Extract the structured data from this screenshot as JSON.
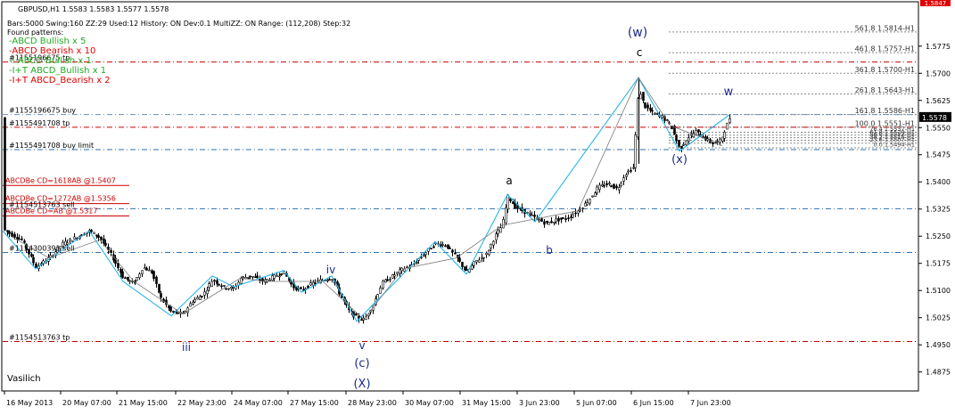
{
  "chart_data": {
    "type": "candlestick",
    "symbol_line": "GBPUSD,H1  1.5583 1.5583 1.5577 1.5578",
    "info_line": "Bars:5000  Swing:160  ZZ:29  Used:12  History: ON Dev:0.1  MultiZZ: ON  Range: (112,208)  Step:32",
    "found_patterns_label": "Found patterns:",
    "patterns": [
      {
        "text": "-ABCD Bullish x 5",
        "color": "#22aa22"
      },
      {
        "text": "-ABCD Bearish x 10",
        "color": "#dd0000"
      },
      {
        "text": "-I ABCD Bullish x 1",
        "color": "#22aa22"
      },
      {
        "text": "-I+T ABCD_Bullish x 1",
        "color": "#22aa22"
      },
      {
        "text": "-I+T ABCD_Bearish x 2",
        "color": "#dd0000"
      }
    ],
    "price_axis": {
      "min": 1.4825,
      "max": 1.5895,
      "ticks": [
        "1.5775",
        "1.5700",
        "1.5625",
        "1.5550",
        "1.5475",
        "1.5400",
        "1.5325",
        "1.5250",
        "1.5175",
        "1.5100",
        "1.5025",
        "1.4950",
        "1.4875"
      ],
      "current_price": "1.5578",
      "top_label": "1.5847"
    },
    "time_axis": {
      "ticks": [
        "16 May 2013",
        "20 May 07:00",
        "21 May 15:00",
        "22 May 23:00",
        "24 May 07:00",
        "27 May 15:00",
        "28 May 23:00",
        "30 May 07:00",
        "31 May 15:00",
        "3 Jun 23:00",
        "5 Jun 07:00",
        "6 Jun 15:00",
        "7 Jun 23:00"
      ]
    },
    "fibo_levels": [
      {
        "label": "561.8 1.5814-H1",
        "price": 1.5814
      },
      {
        "label": "461.8 1.5757-H1",
        "price": 1.5757
      },
      {
        "label": "361.8 1.5700-H1",
        "price": 1.57
      },
      {
        "label": "261.8 1.5643-H1",
        "price": 1.5643
      },
      {
        "label": "161.8 1.5586-H1",
        "price": 1.5586
      },
      {
        "label": "100.0 1.5551-H1",
        "price": 1.5551
      },
      {
        "label": "76.4 1.5537-H1",
        "price": 1.5537
      },
      {
        "label": "61.8 1.5529-H1",
        "price": 1.5529
      },
      {
        "label": "50.0 1.5522-H1",
        "price": 1.5522
      },
      {
        "label": "38.2 1.5515-H1",
        "price": 1.5515
      },
      {
        "label": "23.6 1.5507-H1",
        "price": 1.5507
      },
      {
        "label": "0.0 1.5494-H1",
        "price": 1.5494
      }
    ],
    "order_lines": [
      {
        "label": "#1155196675 tp",
        "price": 1.5731,
        "color": "#cc0000",
        "style": "dashdot"
      },
      {
        "label": "#1155196675 buy",
        "price": 1.5586,
        "color": "#6f8fb0",
        "style": "dashdot"
      },
      {
        "label": "#1155491708 tp",
        "price": 1.5551,
        "color": "#cc0000",
        "style": "dashdot"
      },
      {
        "label": "#1155491708 buy limit",
        "price": 1.5489,
        "color": "#2c6fb0",
        "style": "dashdot"
      },
      {
        "label": "#1154513763 sell",
        "price": 1.5326,
        "color": "#2c6fb0",
        "style": "dashdot"
      },
      {
        "label": "#1154300391 sell",
        "price": 1.5205,
        "color": "#2c6fb0",
        "style": "dashdot"
      },
      {
        "label": "#1154513763 tp",
        "price": 1.4959,
        "color": "#cc0000",
        "style": "dashdot"
      }
    ],
    "abcd_levels": [
      {
        "label": "ABCDBe CD=1618AB   @1.5407",
        "price": 1.539
      },
      {
        "label": "ABCDBe CD=1272AB   @1.5356",
        "price": 1.534
      },
      {
        "label": "ABCDBe CD=AB   @1.5317",
        "price": 1.5306
      }
    ],
    "wave_labels": [
      "(w)",
      "c",
      "w",
      "(x)",
      "a",
      "b",
      "iv",
      "iii",
      "v",
      "(c)",
      "(X)"
    ],
    "watermark": "Vasilich",
    "colors": {
      "grid_dash": "#8a8a8a",
      "zigzag": "#29b6e8",
      "candle": "#000000",
      "wave_label": "#1c2a8c",
      "axis": "#000000"
    }
  }
}
